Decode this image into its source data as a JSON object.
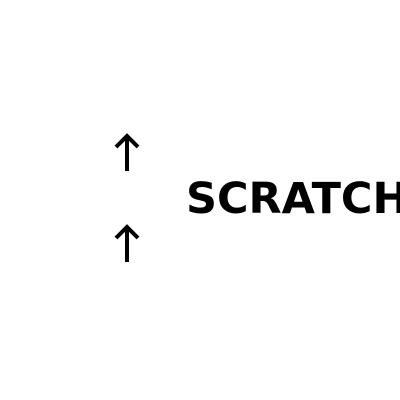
{
  "scene": {
    "background_color": "#ffffff",
    "ink_color": "#000000",
    "icons": [
      "up-arrow-icon",
      "up-arrow-icon"
    ],
    "label": "SCRATCH"
  }
}
